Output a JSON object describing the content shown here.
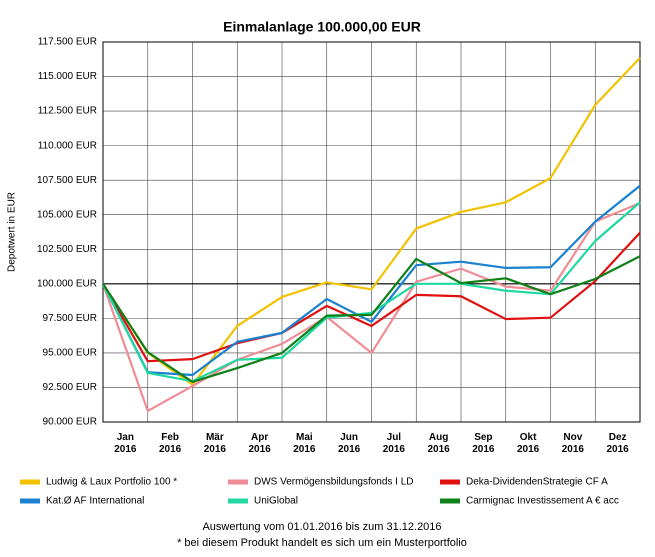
{
  "chart_data": {
    "type": "line",
    "title": "Einmalanlage 100.000,00 EUR",
    "y_label": "Depotwert in EUR",
    "categories": [
      "Jan 2016",
      "Feb 2016",
      "Mär 2016",
      "Apr 2016",
      "Mai 2016",
      "Jun 2016",
      "Jul 2016",
      "Aug 2016",
      "Sep 2016",
      "Okt 2016",
      "Nov 2016",
      "Dez 2016",
      null
    ],
    "series": [
      {
        "name": "Ludwig & Laux Portfolio 100 *",
        "color": "#f2c200",
        "values": [
          100000,
          95000,
          92700,
          96950,
          99050,
          100100,
          99600,
          104000,
          105200,
          105900,
          107650,
          112950,
          116350
        ]
      },
      {
        "name": "DWS Vermögensbildungsfonds I LD",
        "color": "#f08c96",
        "values": [
          100000,
          90800,
          92600,
          94500,
          95650,
          97600,
          95000,
          100150,
          101100,
          99800,
          99500,
          104500,
          105850
        ]
      },
      {
        "name": "Deka-DividendenStrategie CF A",
        "color": "#e01010",
        "values": [
          100000,
          94400,
          94550,
          95700,
          96450,
          98400,
          96950,
          99200,
          99100,
          97450,
          97550,
          100200,
          103700
        ]
      },
      {
        "name": "Kat.Ø AF International",
        "color": "#1a80d0",
        "values": [
          100000,
          93600,
          93400,
          95800,
          96450,
          98900,
          97250,
          101350,
          101600,
          101150,
          101200,
          104500,
          107100
        ]
      },
      {
        "name": "UniGlobal",
        "color": "#20d8a0",
        "values": [
          100000,
          93550,
          92950,
          94500,
          94650,
          97550,
          97900,
          100000,
          100000,
          99500,
          99250,
          103100,
          105900
        ]
      },
      {
        "name": "Carmignac Investissement A € acc",
        "color": "#108018",
        "values": [
          100000,
          95050,
          92900,
          93900,
          95000,
          97700,
          97750,
          101800,
          100050,
          100400,
          99250,
          100350,
          102000
        ]
      }
    ],
    "ylim": [
      90000,
      117500
    ],
    "yticks": [
      {
        "value": 90000,
        "label": "90.000 EUR"
      },
      {
        "value": 92500,
        "label": "92.500 EUR"
      },
      {
        "value": 95000,
        "label": "95.000 EUR"
      },
      {
        "value": 97500,
        "label": "97.500 EUR"
      },
      {
        "value": 100000,
        "label": "100.000 EUR"
      },
      {
        "value": 102500,
        "label": "102.500 EUR"
      },
      {
        "value": 105000,
        "label": "105.000 EUR"
      },
      {
        "value": 107500,
        "label": "107.500 EUR"
      },
      {
        "value": 110000,
        "label": "110.000 EUR"
      },
      {
        "value": 112500,
        "label": "112.500 EUR"
      },
      {
        "value": 115000,
        "label": "115.000 EUR"
      },
      {
        "value": 117500,
        "label": "117.500 EUR"
      }
    ],
    "hline": 100000,
    "grid": true,
    "footer": [
      "Auswertung vom 01.01.2016 bis zum 31.12.2016",
      "* bei diesem Produkt handelt es sich um ein Musterportfolio"
    ]
  }
}
